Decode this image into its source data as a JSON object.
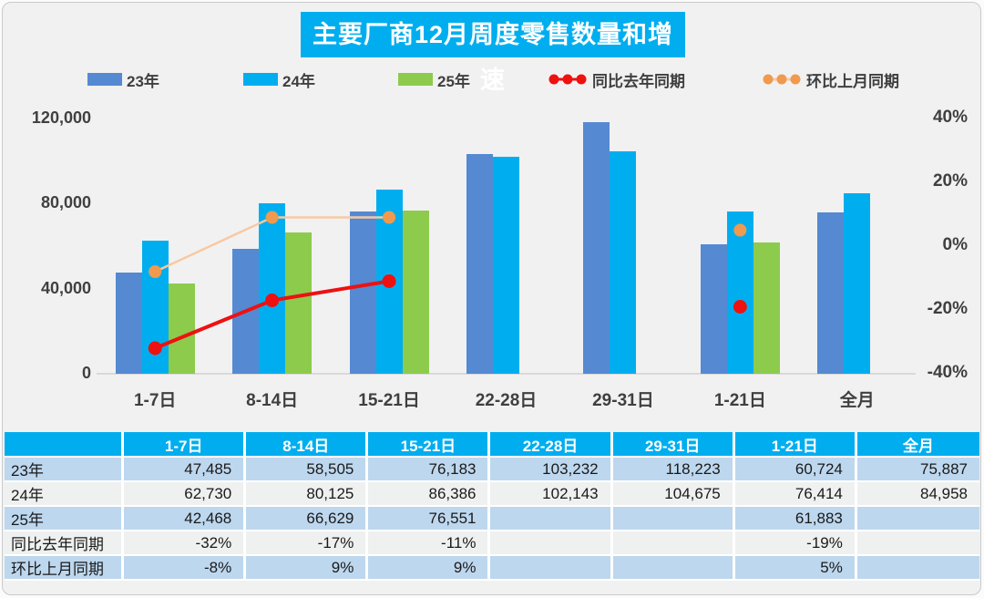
{
  "title": "主要厂商12月周度零售数量和增速",
  "colors": {
    "card_bg": "#F1F1F2",
    "card_border": "#C9CACB",
    "title_bg": "#00AEEF",
    "series_23": "#5589D2",
    "series_24": "#00AEEF",
    "series_25": "#8DCB4C",
    "yoy_line": "#EE1111",
    "mom_line": "#F8C9A2",
    "mom_marker": "#EF9A4E",
    "axis_text": "#404040",
    "axis_line": "#D9D9D9",
    "table_header_bg": "#00AEEF",
    "row_stripe_blue": "#BDD7EE",
    "row_stripe_light": "#EFF0F0"
  },
  "legend": [
    {
      "label": "23年",
      "type": "swatch",
      "colorKey": "series_23"
    },
    {
      "label": "24年",
      "type": "swatch",
      "colorKey": "series_24"
    },
    {
      "label": "25年",
      "type": "swatch",
      "colorKey": "series_25"
    },
    {
      "label": "同比去年同期",
      "type": "line",
      "lineKey": "yoy_line",
      "markerKey": "yoy_line"
    },
    {
      "label": "环比上月同期",
      "type": "line",
      "lineKey": "mom_line",
      "markerKey": "mom_marker"
    }
  ],
  "chart_data": {
    "type": "bar",
    "subtype": "grouped bars + percent lines (combo, dual axis)",
    "title": "主要厂商12月周度零售数量和增速",
    "categories": [
      "1-7日",
      "8-14日",
      "15-21日",
      "22-28日",
      "29-31日",
      "1-21日",
      "全月"
    ],
    "series": [
      {
        "name": "23年",
        "type": "bar",
        "axis": "left",
        "values": [
          47485,
          58505,
          76183,
          103232,
          118223,
          60724,
          75887
        ]
      },
      {
        "name": "24年",
        "type": "bar",
        "axis": "left",
        "values": [
          62730,
          80125,
          86386,
          102143,
          104675,
          76414,
          84958
        ]
      },
      {
        "name": "25年",
        "type": "bar",
        "axis": "left",
        "values": [
          42468,
          66629,
          76551,
          null,
          null,
          61883,
          null
        ]
      },
      {
        "name": "同比去年同期",
        "type": "line",
        "axis": "right",
        "values": [
          -32,
          -17,
          -11,
          null,
          null,
          -19,
          null
        ]
      },
      {
        "name": "环比上月同期",
        "type": "line",
        "axis": "right",
        "values": [
          -8,
          9,
          9,
          null,
          null,
          5,
          null
        ]
      }
    ],
    "left_axis": {
      "min": 0,
      "max": 120000,
      "tick_labels": [
        "120,000",
        "80,000",
        "40,000",
        "0"
      ],
      "tick_values": [
        120000,
        80000,
        40000,
        0
      ]
    },
    "right_axis": {
      "min": -40,
      "max": 40,
      "tick_labels": [
        "40%",
        "20%",
        "0%",
        "-20%",
        "-40%"
      ],
      "tick_values": [
        40,
        20,
        0,
        -20,
        -40
      ]
    },
    "grid": false,
    "legend_position": "top"
  },
  "table": {
    "header": [
      "",
      "1-7日",
      "8-14日",
      "15-21日",
      "22-28日",
      "29-31日",
      "1-21日",
      "全月"
    ],
    "rows": [
      {
        "label": "23年",
        "cells": [
          "47,485",
          "58,505",
          "76,183",
          "103,232",
          "118,223",
          "60,724",
          "75,887"
        ]
      },
      {
        "label": "24年",
        "cells": [
          "62,730",
          "80,125",
          "86,386",
          "102,143",
          "104,675",
          "76,414",
          "84,958"
        ]
      },
      {
        "label": "25年",
        "cells": [
          "42,468",
          "66,629",
          "76,551",
          "",
          "",
          "61,883",
          ""
        ]
      },
      {
        "label": "同比去年同期",
        "cells": [
          "-32%",
          "-17%",
          "-11%",
          "",
          "",
          "-19%",
          ""
        ]
      },
      {
        "label": "环比上月同期",
        "cells": [
          "-8%",
          "9%",
          "9%",
          "",
          "",
          "5%",
          ""
        ]
      }
    ]
  }
}
